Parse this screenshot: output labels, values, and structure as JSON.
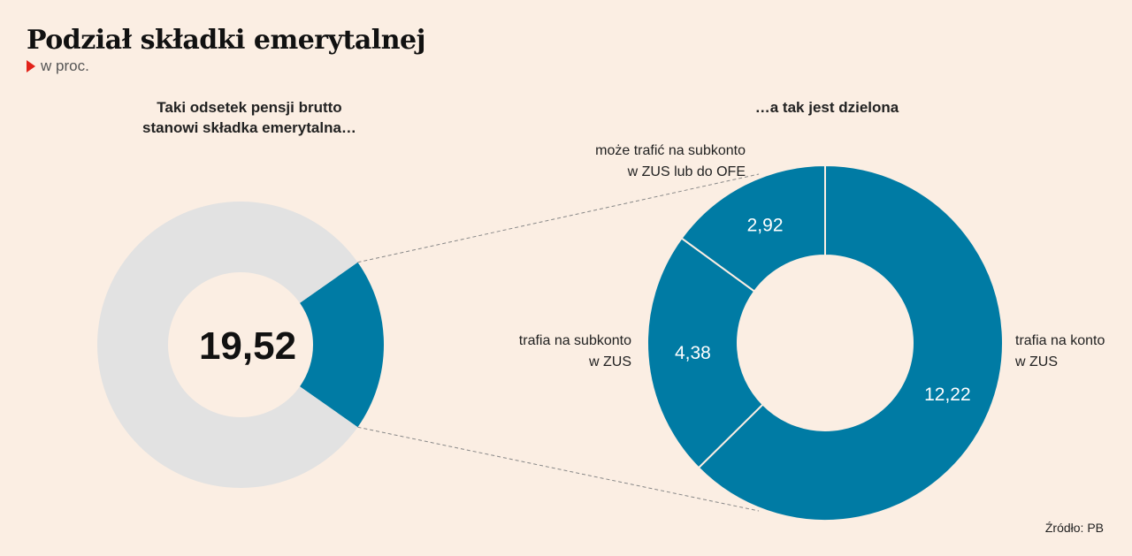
{
  "header": {
    "title": "Podział składki emerytalnej",
    "subtitle": "w proc."
  },
  "source": "Źródło: PB",
  "colors": {
    "background": "#fbeee3",
    "accent": "#007ba4",
    "remainder": "#e2e2e2",
    "marker": "#e2231a"
  },
  "chart_data": [
    {
      "type": "pie",
      "title": "Taki odsetek pensji brutto stanowi składka emerytalna…",
      "title_lines": [
        "Taki odsetek pensji brutto",
        "stanowi składka emerytalna…"
      ],
      "center_label": "19,52",
      "slices": [
        {
          "label": "",
          "value": 19.52,
          "color": "#007ba4"
        },
        {
          "label": "",
          "value": 80.48,
          "color": "#e2e2e2"
        }
      ]
    },
    {
      "type": "pie",
      "title": "…a tak jest dzielona",
      "slices": [
        {
          "label": "trafia na konto w ZUS",
          "label_lines": [
            "trafia na konto",
            "w ZUS"
          ],
          "value": 12.22,
          "display": "12,22",
          "color": "#007ba4"
        },
        {
          "label": "trafia na subkonto w ZUS",
          "label_lines": [
            "trafia na subkonto",
            "w ZUS"
          ],
          "value": 4.38,
          "display": "4,38",
          "color": "#007ba4"
        },
        {
          "label": "może trafić na subkonto w ZUS lub do OFE",
          "label_lines": [
            "może trafić na subkonto",
            "w ZUS lub do OFE"
          ],
          "value": 2.92,
          "display": "2,92",
          "color": "#007ba4"
        }
      ]
    }
  ]
}
